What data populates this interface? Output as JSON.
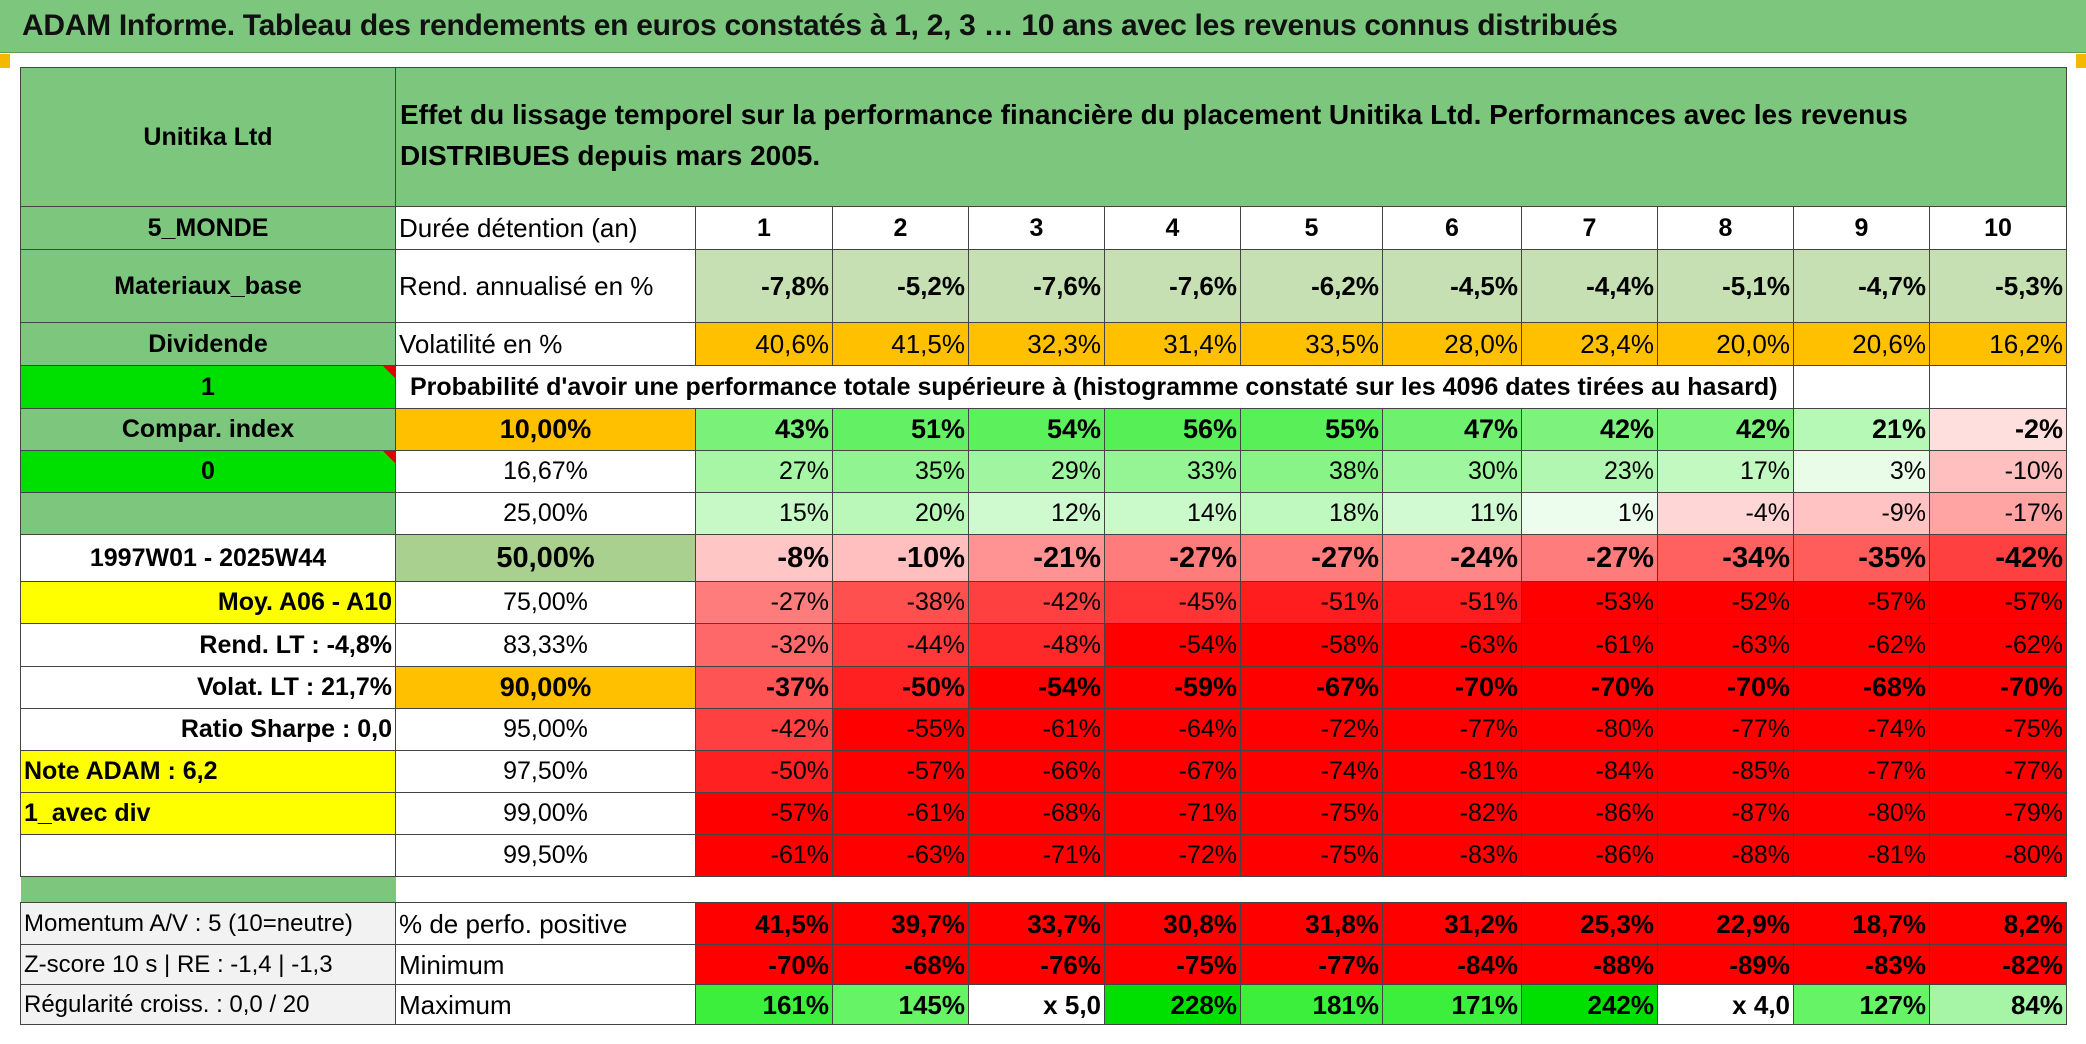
{
  "title": "ADAM Informe. Tableau des rendements en euros constatés à 1, 2, 3 … 10 ans avec les revenus connus distribués",
  "company": "Unitika Ltd",
  "description": "Effet du lissage temporel sur la performance financière du placement Unitika Ltd. Performances avec les revenus DISTRIBUES depuis mars 2005.",
  "side": {
    "zone": "5_MONDE",
    "sector": "Materiaux_base",
    "dividend_label": "Dividende",
    "flag1": "1",
    "compar_index": "Compar. index",
    "flag0": "0",
    "period": "1997W01 - 2025W44",
    "avg": "Moy. A06 - A10",
    "rend_lt": "Rend. LT :    -4,8%",
    "volat_lt": "Volat. LT :   21,7%",
    "sharpe": "Ratio Sharpe :    0,0",
    "note": "Note ADAM : 6,2",
    "div_mode": "1_avec div",
    "momentum": "Momentum A/V : 5 (10=neutre)",
    "zscore": "Z-score 10 s | RE : -1,4 | -1,3",
    "regularite": "Régularité croiss. : 0,0 / 20"
  },
  "labels": {
    "duration": "Durée détention (an)",
    "rend": "Rend. annualisé en %",
    "vol": "Volatilité en %",
    "prob": "Probabilité d'avoir une performance totale supérieure à (histogramme constaté sur les 4096 dates tirées au hasard)",
    "pos": "% de perfo. positive",
    "min": "Minimum",
    "max": "Maximum"
  },
  "years": [
    "1",
    "2",
    "3",
    "4",
    "5",
    "6",
    "7",
    "8",
    "9",
    "10"
  ],
  "rend": [
    "-7,8%",
    "-5,2%",
    "-7,6%",
    "-7,6%",
    "-6,2%",
    "-4,5%",
    "-4,4%",
    "-5,1%",
    "-4,7%",
    "-5,3%"
  ],
  "vol": [
    "40,6%",
    "41,5%",
    "32,3%",
    "31,4%",
    "33,5%",
    "28,0%",
    "23,4%",
    "20,0%",
    "20,6%",
    "16,2%"
  ],
  "prob_rows": [
    {
      "pct": "10,00%",
      "vals": [
        "43%",
        "51%",
        "54%",
        "56%",
        "55%",
        "47%",
        "42%",
        "42%",
        "21%",
        "-2%"
      ]
    },
    {
      "pct": "16,67%",
      "vals": [
        "27%",
        "35%",
        "29%",
        "33%",
        "38%",
        "30%",
        "23%",
        "17%",
        "3%",
        "-10%"
      ]
    },
    {
      "pct": "25,00%",
      "vals": [
        "15%",
        "20%",
        "12%",
        "14%",
        "18%",
        "11%",
        "1%",
        "-4%",
        "-9%",
        "-17%"
      ]
    },
    {
      "pct": "50,00%",
      "vals": [
        "-8%",
        "-10%",
        "-21%",
        "-27%",
        "-27%",
        "-24%",
        "-27%",
        "-34%",
        "-35%",
        "-42%"
      ]
    },
    {
      "pct": "75,00%",
      "vals": [
        "-27%",
        "-38%",
        "-42%",
        "-45%",
        "-51%",
        "-51%",
        "-53%",
        "-52%",
        "-57%",
        "-57%"
      ]
    },
    {
      "pct": "83,33%",
      "vals": [
        "-32%",
        "-44%",
        "-48%",
        "-54%",
        "-58%",
        "-63%",
        "-61%",
        "-63%",
        "-62%",
        "-62%"
      ]
    },
    {
      "pct": "90,00%",
      "vals": [
        "-37%",
        "-50%",
        "-54%",
        "-59%",
        "-67%",
        "-70%",
        "-70%",
        "-70%",
        "-68%",
        "-70%"
      ]
    },
    {
      "pct": "95,00%",
      "vals": [
        "-42%",
        "-55%",
        "-61%",
        "-64%",
        "-72%",
        "-77%",
        "-80%",
        "-77%",
        "-74%",
        "-75%"
      ]
    },
    {
      "pct": "97,50%",
      "vals": [
        "-50%",
        "-57%",
        "-66%",
        "-67%",
        "-74%",
        "-81%",
        "-84%",
        "-85%",
        "-77%",
        "-77%"
      ]
    },
    {
      "pct": "99,00%",
      "vals": [
        "-57%",
        "-61%",
        "-68%",
        "-71%",
        "-75%",
        "-82%",
        "-86%",
        "-87%",
        "-80%",
        "-79%"
      ]
    },
    {
      "pct": "99,50%",
      "vals": [
        "-61%",
        "-63%",
        "-71%",
        "-72%",
        "-75%",
        "-83%",
        "-86%",
        "-88%",
        "-81%",
        "-80%"
      ]
    }
  ],
  "pos": [
    "41,5%",
    "39,7%",
    "33,7%",
    "30,8%",
    "31,8%",
    "31,2%",
    "25,3%",
    "22,9%",
    "18,7%",
    "8,2%"
  ],
  "min": [
    "-70%",
    "-68%",
    "-76%",
    "-75%",
    "-77%",
    "-84%",
    "-88%",
    "-89%",
    "-83%",
    "-82%"
  ],
  "max": [
    "161%",
    "145%",
    "x 5,0",
    "228%",
    "181%",
    "171%",
    "242%",
    "x 4,0",
    "127%",
    "84%"
  ],
  "colors": {
    "header_green": "#7dc67e",
    "bright_green": "#00e000",
    "orange": "#ffc000",
    "yellow": "#ffff00",
    "red": "#ff0000",
    "label_red": "#d11a1a"
  },
  "icons": {
    "comment_marker": "red-triangle-icon"
  }
}
